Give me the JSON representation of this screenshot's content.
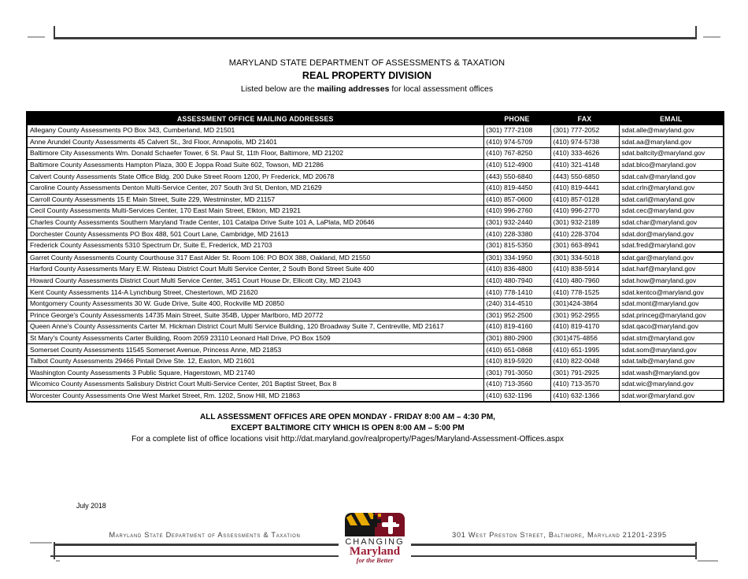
{
  "header": {
    "title_line1": "MARYLAND STATE DEPARTMENT OF ASSESSMENTS & TAXATION",
    "title_line2": "REAL PROPERTY DIVISION",
    "intro_prefix": "Listed below are the ",
    "intro_bold": "mailing addresses",
    "intro_suffix": " for local assessment offices"
  },
  "table": {
    "headers": [
      "ASSESSMENT OFFICE MAILING ADDRESSES",
      "PHONE",
      "FAX",
      "EMAIL"
    ],
    "rows": [
      {
        "address": "Allegany County Assessments PO Box 343, Cumberland, MD 21501",
        "phone": "(301) 777-2108",
        "fax": "(301) 777-2052",
        "email": "sdat.alle@maryland.gov"
      },
      {
        "address": "Anne Arundel County Assessments 45 Calvert St., 3rd Floor, Annapolis, MD 21401",
        "phone": "(410) 974-5709",
        "fax": "(410) 974-5738",
        "email": "sdat.aa@maryland.gov"
      },
      {
        "address": "Baltimore City Assessments Wm. Donald Schaefer Tower, 6 St. Paul St, 11th Floor, Baltimore, MD 21202",
        "phone": "(410) 767-8250",
        "fax": "(410) 333-4626",
        "email": "sdat.baltcity@maryland.gov"
      },
      {
        "address": "Baltimore County Assessments Hampton Plaza, 300 E Joppa Road Suite 602, Towson, MD 21286",
        "phone": "(410) 512-4900",
        "fax": "(410) 321-4148",
        "email": "sdat.blco@maryland.gov"
      },
      {
        "address": "Calvert County Assessments State Office Bldg. 200 Duke Street Room 1200, Pr Frederick, MD 20678",
        "phone": "(443) 550-6840",
        "fax": "(443) 550-6850",
        "email": "sdat.calv@maryland.gov"
      },
      {
        "address": "Caroline County Assessments Denton Multi-Service Center,  207 South 3rd St, Denton, MD 21629",
        "phone": "(410) 819-4450",
        "fax": "(410) 819-4441",
        "email": "sdat.crln@maryland.gov"
      },
      {
        "address": "Carroll County Assessments  15 E Main Street, Suite 229, Westminster, MD 21157",
        "phone": "(410) 857-0600",
        "fax": "(410) 857-0128",
        "email": "sdat.carl@maryland.gov"
      },
      {
        "address": "Cecil County Assessments Multi-Services Center, 170 East Main Street, Elkton, MD 21921",
        "phone": "(410) 996-2760",
        "fax": "(410) 996-2770",
        "email": "sdat.cec@maryland.gov"
      },
      {
        "address": "Charles County Assessments Southern Maryland Trade Center, 101 Catalpa Drive Suite 101 A, LaPlata, MD 20646",
        "phone": "(301) 932-2440",
        "fax": "(301) 932-2189",
        "email": "sdat.char@maryland.gov"
      },
      {
        "address": "Dorchester County Assessments PO Box 488, 501 Court Lane, Cambridge, MD 21613",
        "phone": "(410) 228-3380",
        "fax": "(410) 228-3704",
        "email": "sdat.dor@maryland.gov"
      },
      {
        "address": "Frederick County Assessments 5310 Spectrum Dr, Suite E, Frederick, MD 21703",
        "phone": "(301) 815-5350",
        "fax": "(301) 663-8941",
        "email": "sdat.fred@maryland.gov"
      },
      {
        "address": "Garret County Assessments County Courthouse 317 East Alder St. Room 106: PO BOX 388, Oakland, MD 21550",
        "phone": "(301) 334-1950",
        "fax": "(301) 334-5018",
        "email": "sdat.gar@maryland.gov"
      },
      {
        "address": "Harford County Assessments Mary E.W. Risteau District Court Multi Service Center, 2 South Bond Street Suite 400",
        "phone": "(410) 836-4800",
        "fax": "(410) 838-5914",
        "email": "sdat.harf@maryland.gov"
      },
      {
        "address": "Howard County Assessments District Court Multi Service Center, 3451 Court House Dr, Ellicott City, MD 21043",
        "phone": "(410) 480-7940",
        "fax": "(410) 480-7960",
        "email": "sdat.how@maryland.gov"
      },
      {
        "address": "Kent County Assessments 114-A Lynchburg Street, Chestertown, MD 21620",
        "phone": "(410) 778-1410",
        "fax": "(410) 778-1525",
        "email": "sdat.kentco@maryland.gov"
      },
      {
        "address": "Montgomery County Assessments 30 W. Gude Drive, Suite 400,  Rockville MD 20850",
        "phone": "(240) 314-4510",
        "fax": "(301)424-3864",
        "email": "sdat.mont@maryland.gov"
      },
      {
        "address": "Prince George's County Assessments 14735 Main Street, Suite 354B,  Upper Marlboro, MD 20772",
        "phone": "(301) 952-2500",
        "fax": "(301) 952-2955",
        "email": "sdat.princeg@maryland.gov"
      },
      {
        "address": "Queen Anne's County Assessments Carter M. Hickman District Court Multi Service Building, 120 Broadway Suite 7, Centreville, MD 21617",
        "phone": "(410) 819-4160",
        "fax": "(410) 819-4170",
        "email": "sdat.qaco@maryland.gov"
      },
      {
        "address": "St Mary's County Assessments Carter Building, Room 2059 23110 Leonard Hall Drive, PO Box 1509",
        "phone": "(301) 880-2900",
        "fax": "(301)475-4856",
        "email": "sdat.stm@maryland.gov"
      },
      {
        "address": "Somerset County Assessments 11545 Somerset Avenue, Princess Anne, MD 21853",
        "phone": "(410) 651-0868",
        "fax": "(410) 651-1995",
        "email": "sdat.som@maryland.gov"
      },
      {
        "address": "Talbot County Assessments 29466 Pintail Drive Ste. 12, Easton, MD 21601",
        "phone": "(410) 819-5920",
        "fax": "(410) 822-0048",
        "email": "sdat.talb@maryland.gov"
      },
      {
        "address": "Washington County Assessments 3 Public Square, Hagerstown, MD 21740",
        "phone": "(301) 791-3050",
        "fax": "(301) 791-2925",
        "email": "sdat.wash@maryland.gov"
      },
      {
        "address": "Wicomico County Assessments Salisbury District Court Multi-Service Center, 201 Baptist Street, Box 8",
        "phone": "(410) 713-3560",
        "fax": "(410) 713-3570",
        "email": "sdat.wic@maryland.gov"
      },
      {
        "address": "Worcester County Assessments One West Market Street, Rm. 1202,  Snow Hill, MD 21863",
        "phone": "(410) 632-1196",
        "fax": "(410) 632-1366",
        "email": "sdat.wor@maryland.gov"
      }
    ]
  },
  "notes": {
    "line1": "ALL ASSESSMENT OFFICES ARE OPEN MONDAY - FRIDAY 8:00 AM – 4:30 PM,",
    "line2": "EXCEPT BALTIMORE CITY WHICH IS OPEN 8:00 AM – 5:00 PM",
    "line3": "For a complete list of office locations visit http://dat.maryland.gov/realproperty/Pages/Maryland-Assessment-Offices.aspx"
  },
  "date_label": "July 2018",
  "footer": {
    "left_text": "Maryland State Department of Assessments & Taxation",
    "right_text": "301 West Preston Street, Baltimore, Maryland  21201-2395",
    "logo": {
      "line1": "CHANGING",
      "line2": "Maryland",
      "line3": "for the Better"
    }
  },
  "colors": {
    "table_header_bg": "#000000",
    "maryland_red": "#9b1b33",
    "maryland_gold": "#e8a900"
  }
}
